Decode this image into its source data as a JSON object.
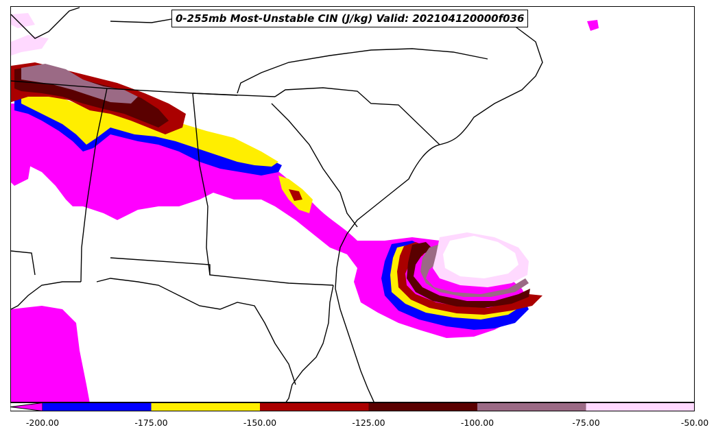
{
  "title": "0-255mb Most-Unstable CIN (J/kg) Valid: 202104120000f036",
  "colorbar": {
    "ticks": [
      "-200.00",
      "-175.00",
      "-150.00",
      "-125.00",
      "-100.00",
      "-75.00",
      "-50.00"
    ],
    "range": [
      -200,
      -50
    ],
    "extend": "min",
    "colors": [
      "#ff00ff",
      "#0000ff",
      "#ffee00",
      "#aa0000",
      "#5a0000",
      "#9b6a85",
      "#ffd9ff"
    ]
  },
  "map": {
    "region": "Southeastern United States",
    "features": [
      "state borders",
      "coastlines"
    ]
  }
}
